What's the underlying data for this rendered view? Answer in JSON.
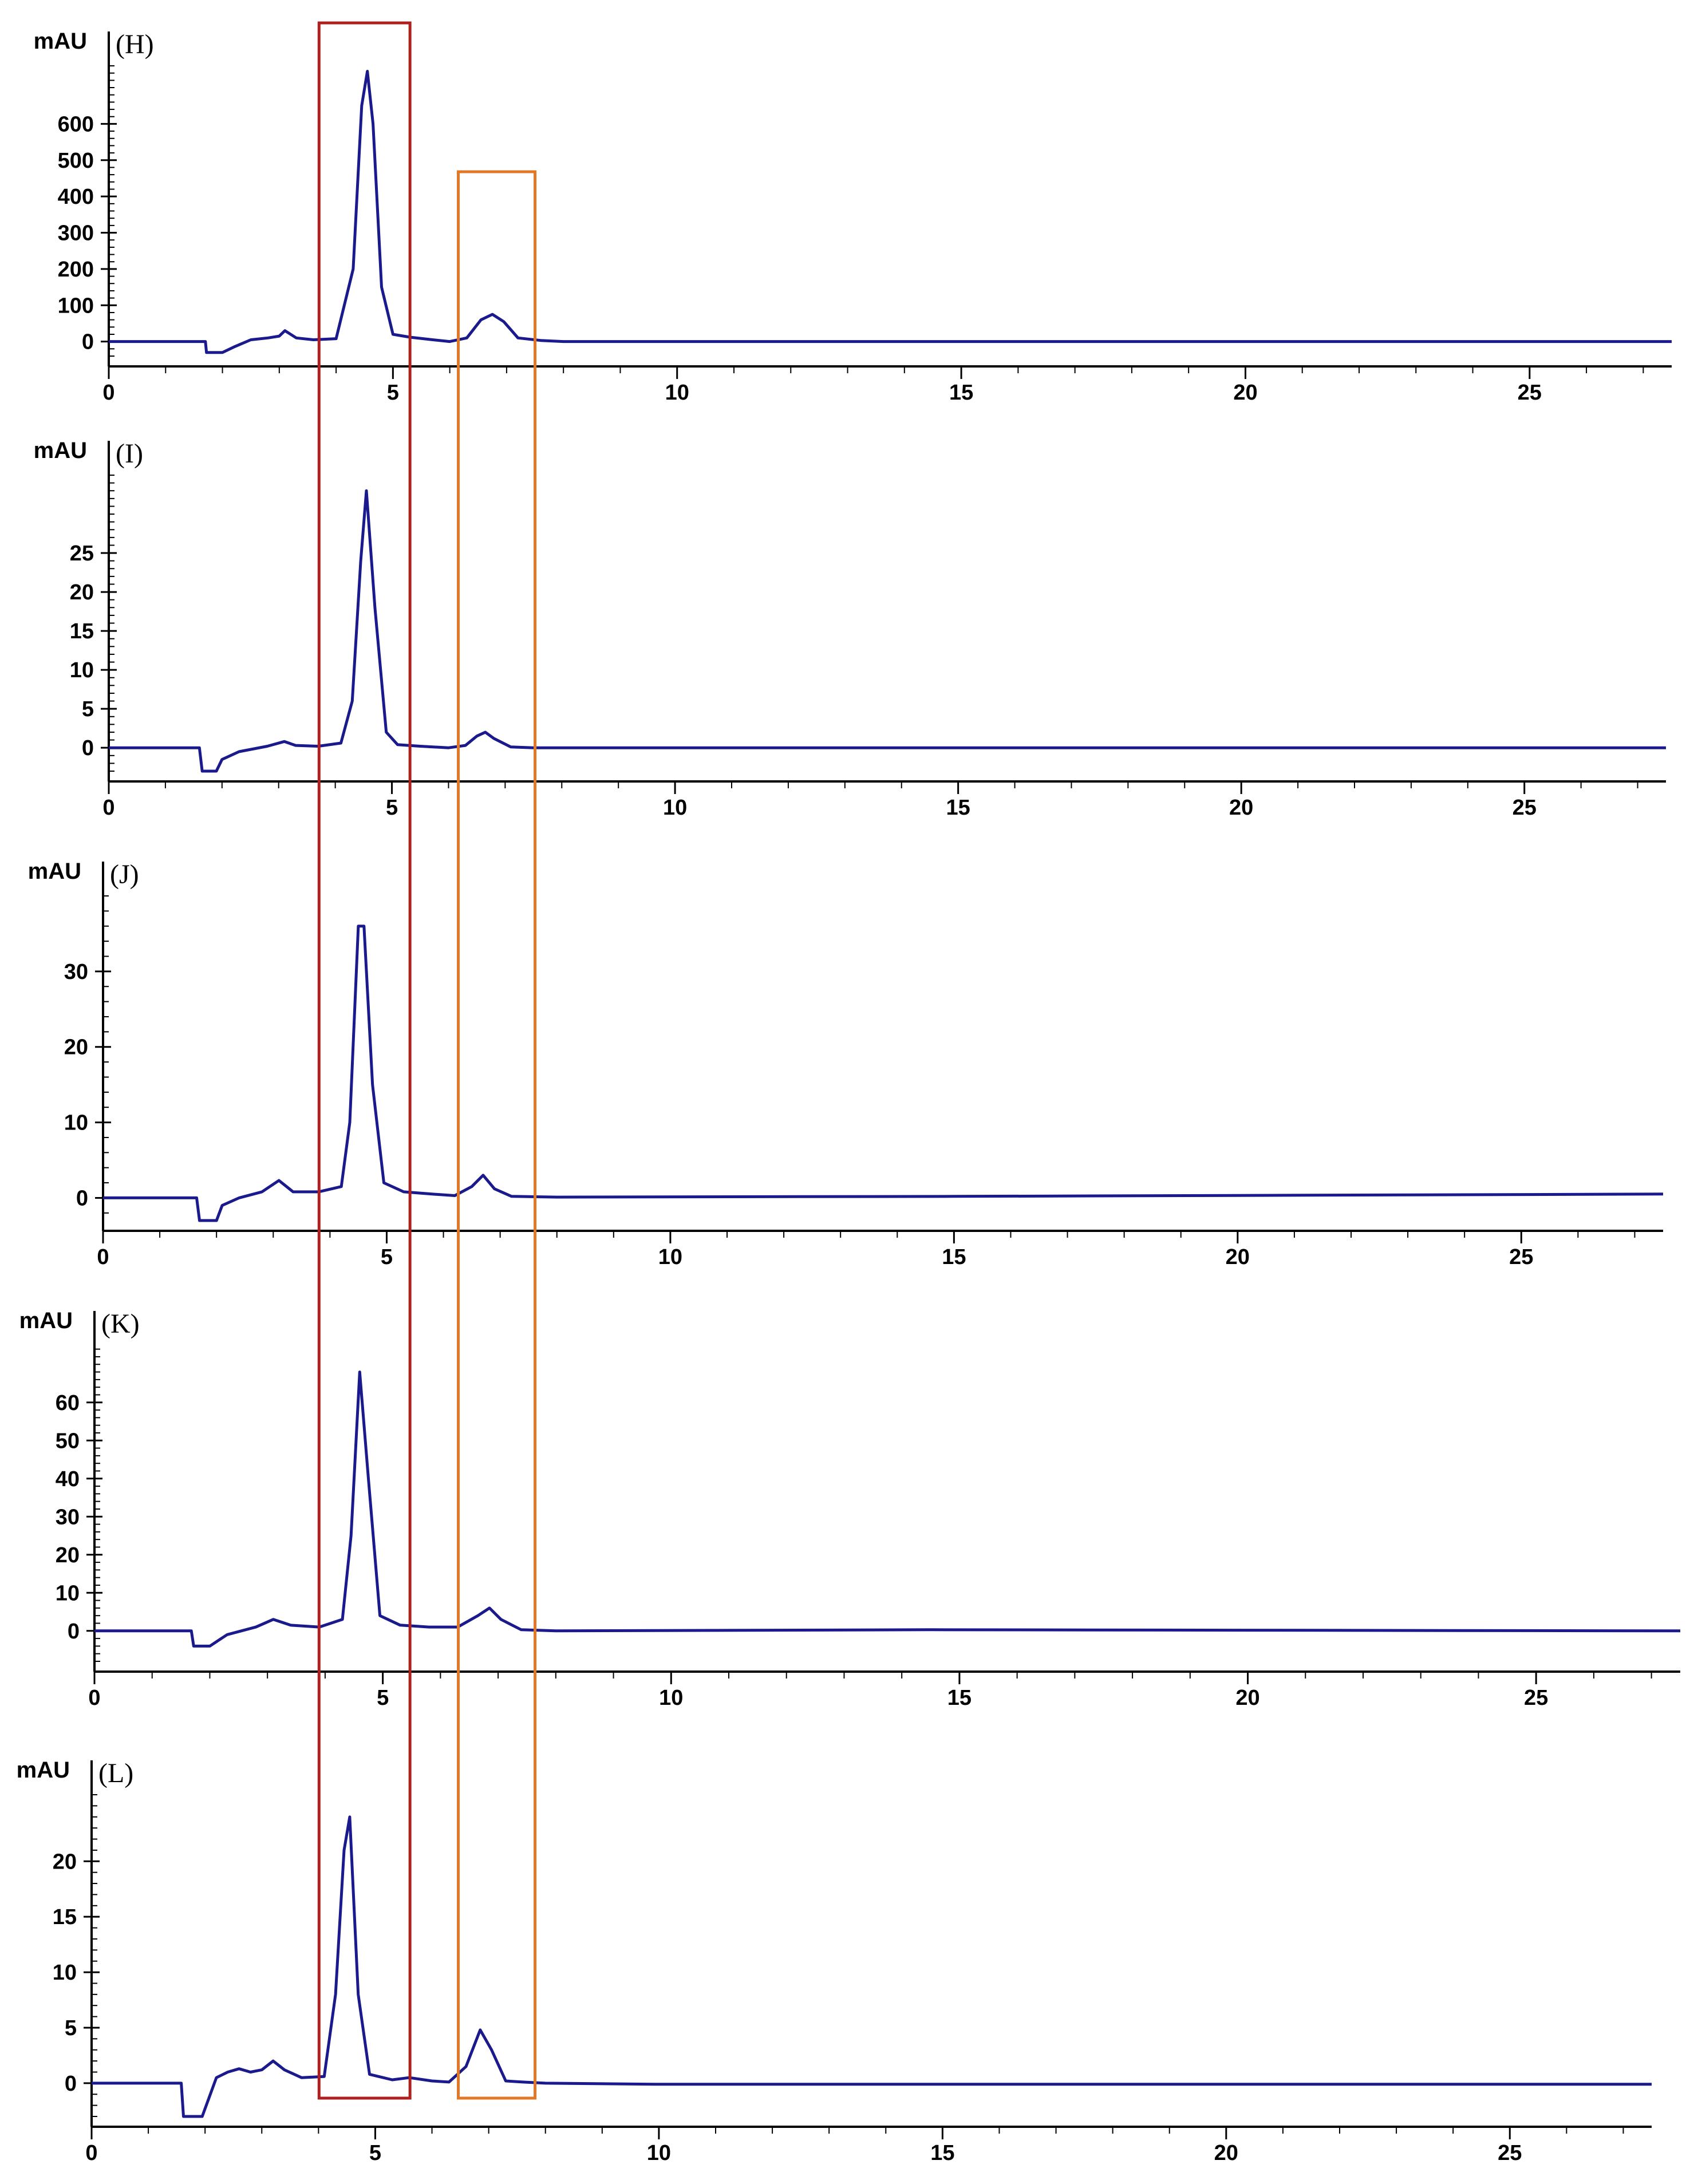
{
  "chart_data": [
    {
      "type": "line",
      "panel_label": "(H)",
      "ylabel": "mAU",
      "xlim": [
        0,
        27.5
      ],
      "ylim": [
        -40,
        760
      ],
      "x_ticks": [
        0,
        5,
        10,
        15,
        20,
        25
      ],
      "y_ticks": [
        0,
        100,
        200,
        300,
        400,
        500,
        600
      ],
      "series": [
        {
          "color": "#1a1a8c",
          "x": [
            0,
            1.7,
            1.72,
            2.0,
            2.2,
            2.5,
            2.8,
            3.0,
            3.1,
            3.3,
            3.6,
            4.0,
            4.3,
            4.45,
            4.55,
            4.65,
            4.8,
            5.0,
            5.3,
            5.7,
            6.0,
            6.3,
            6.55,
            6.75,
            6.95,
            7.2,
            7.6,
            8.0,
            27.5
          ],
          "y": [
            0,
            0,
            -30,
            -30,
            -15,
            5,
            10,
            15,
            30,
            10,
            5,
            8,
            200,
            650,
            745,
            600,
            150,
            20,
            12,
            5,
            0,
            10,
            60,
            75,
            55,
            10,
            3,
            0,
            0
          ]
        }
      ]
    },
    {
      "type": "line",
      "panel_label": "(I)",
      "ylabel": "mAU",
      "xlim": [
        0,
        27.5
      ],
      "ylim": [
        -3,
        35
      ],
      "x_ticks": [
        0,
        5,
        10,
        15,
        20,
        25
      ],
      "y_ticks": [
        0,
        5,
        10,
        15,
        20,
        25
      ],
      "series": [
        {
          "color": "#1a1a8c",
          "x": [
            0,
            1.6,
            1.65,
            1.9,
            2.0,
            2.3,
            2.8,
            3.1,
            3.3,
            3.7,
            4.1,
            4.3,
            4.45,
            4.55,
            4.7,
            4.9,
            5.1,
            5.5,
            6.0,
            6.3,
            6.5,
            6.65,
            6.8,
            7.1,
            7.5,
            27.5
          ],
          "y": [
            0,
            0,
            -3,
            -3,
            -1.5,
            -0.5,
            0.2,
            0.8,
            0.3,
            0.2,
            0.6,
            6,
            24,
            33,
            18,
            2,
            0.4,
            0.2,
            0,
            0.3,
            1.5,
            2.0,
            1.2,
            0.1,
            0,
            0
          ]
        }
      ]
    },
    {
      "type": "line",
      "panel_label": "(J)",
      "ylabel": "mAU",
      "xlim": [
        0,
        27.5
      ],
      "ylim": [
        -3,
        40
      ],
      "x_ticks": [
        0,
        5,
        10,
        15,
        20,
        25
      ],
      "y_ticks": [
        0,
        10,
        20,
        30
      ],
      "series": [
        {
          "color": "#1a1a8c",
          "x": [
            0,
            1.65,
            1.7,
            2.0,
            2.1,
            2.4,
            2.8,
            3.1,
            3.35,
            3.8,
            4.2,
            4.35,
            4.5,
            4.6,
            4.75,
            4.95,
            5.3,
            5.8,
            6.2,
            6.5,
            6.7,
            6.9,
            7.2,
            8,
            15,
            27.5
          ],
          "y": [
            0,
            0,
            -3,
            -3,
            -1,
            0,
            0.8,
            2.3,
            0.8,
            0.8,
            1.5,
            10,
            36,
            36,
            15,
            2,
            0.8,
            0.5,
            0.3,
            1.5,
            3,
            1.2,
            0.2,
            0.1,
            0.2,
            0.5
          ]
        }
      ]
    },
    {
      "type": "line",
      "panel_label": "(K)",
      "ylabel": "mAU",
      "xlim": [
        0,
        27.5
      ],
      "ylim": [
        -8,
        75
      ],
      "x_ticks": [
        0,
        5,
        10,
        15,
        20,
        25
      ],
      "y_ticks": [
        0,
        10,
        20,
        30,
        40,
        50,
        60
      ],
      "series": [
        {
          "color": "#1a1a8c",
          "x": [
            0,
            1.68,
            1.72,
            2.0,
            2.3,
            2.8,
            3.1,
            3.4,
            3.9,
            4.3,
            4.45,
            4.6,
            4.75,
            4.95,
            5.3,
            5.8,
            6.3,
            6.65,
            6.85,
            7.05,
            7.4,
            8,
            14.5,
            27.5
          ],
          "y": [
            0,
            0,
            -4,
            -4,
            -1,
            1,
            3,
            1.5,
            1,
            3,
            25,
            68,
            40,
            4,
            1.5,
            1,
            1,
            4,
            6,
            3,
            0.3,
            0,
            0.3,
            0
          ]
        }
      ]
    },
    {
      "type": "line",
      "panel_label": "(L)",
      "ylabel": "mAU",
      "xlim": [
        0,
        27.5
      ],
      "ylim": [
        -3,
        26
      ],
      "x_ticks": [
        0,
        5,
        10,
        15,
        20,
        25
      ],
      "y_ticks": [
        0,
        5,
        10,
        15,
        20
      ],
      "series": [
        {
          "color": "#1a1a8c",
          "x": [
            0,
            1.58,
            1.62,
            1.95,
            2.2,
            2.4,
            2.6,
            2.8,
            3.0,
            3.2,
            3.4,
            3.7,
            4.1,
            4.3,
            4.45,
            4.55,
            4.7,
            4.9,
            5.3,
            5.6,
            6.0,
            6.3,
            6.6,
            6.85,
            7.05,
            7.3,
            7.6,
            8,
            10,
            27.5
          ],
          "y": [
            0,
            0,
            -3,
            -3,
            0.5,
            1.0,
            1.3,
            1.0,
            1.2,
            2.0,
            1.2,
            0.5,
            0.6,
            8,
            21,
            24,
            8,
            0.8,
            0.3,
            0.5,
            0.2,
            0.1,
            1.5,
            4.8,
            3,
            0.2,
            0.1,
            0,
            -0.1,
            -0.1
          ]
        }
      ]
    }
  ],
  "highlight_boxes": [
    {
      "color": "#b02020",
      "x_range": [
        3.7,
        5.3
      ]
    },
    {
      "color": "#e07828",
      "x_range": [
        6.15,
        7.5
      ]
    }
  ]
}
